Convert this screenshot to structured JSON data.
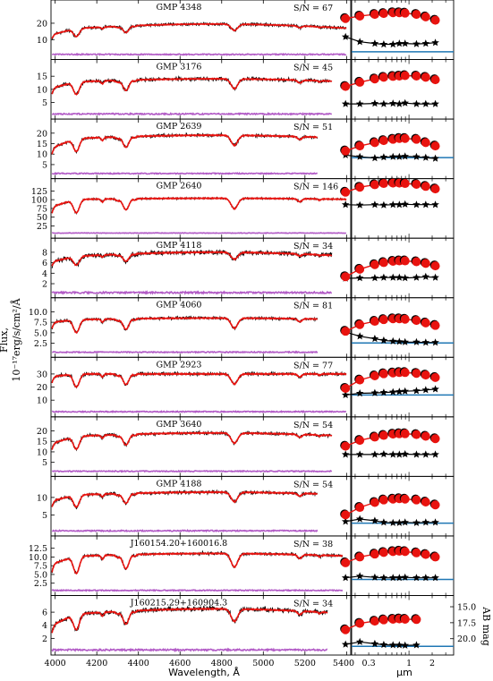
{
  "figure": {
    "ylabel_line1": "Flux,",
    "ylabel_line2": "10⁻¹⁷erg/s/cm²/Å",
    "xlabel_spec": "Wavelength, Å",
    "xlabel_phot": "μm",
    "ylabel_phot": "AB mag"
  },
  "colors": {
    "model": "#e8130f",
    "observed": "#000000",
    "residual": "#b25bc6",
    "continuum": "#1f77b4"
  },
  "chart_data": [
    {
      "type": "line",
      "title": "GMP 4348",
      "sn": "S/N = 67",
      "yticks": [
        "10",
        "20"
      ],
      "ytick_vals": [
        10,
        20
      ],
      "ylim": [
        0,
        32
      ],
      "cont": 16,
      "tilt": 3.5,
      "depth": 0.28,
      "blue": -3,
      "sed": [
        18,
        17.7,
        17.5,
        17.4,
        17.3,
        17.3,
        17.35,
        17.5,
        17.8,
        18.2
      ],
      "cont_mag": 22,
      "star": [
        20.2,
        20.8,
        21.0,
        21.1,
        21.1,
        21.0,
        21.0,
        21.05,
        21.0,
        20.9
      ],
      "noise": 0.8
    },
    {
      "type": "line",
      "title": "GMP 3176",
      "sn": "S/N = 45",
      "yticks": [
        "5",
        "10",
        "15"
      ],
      "ytick_vals": [
        5,
        10,
        15
      ],
      "ylim": [
        0,
        20
      ],
      "cont": 12.5,
      "tilt": 1.5,
      "depth": 0.35,
      "blue": -2,
      "sed": [
        19.0,
        18.5,
        18.1,
        17.9,
        17.8,
        17.75,
        17.7,
        17.75,
        17.9,
        18.2
      ],
      "cont_mag": null,
      "star": [
        21.1,
        21.1,
        21.05,
        21.1,
        21.05,
        21.1,
        21.0,
        21.1,
        21.1,
        21.1
      ],
      "noise": 0.6
    },
    {
      "type": "line",
      "title": "GMP 2639",
      "sn": "S/N = 51",
      "yticks": [
        "5",
        "10",
        "15",
        "20"
      ],
      "ytick_vals": [
        5,
        10,
        15,
        20
      ],
      "ylim": [
        0,
        25
      ],
      "cont": 17,
      "tilt": 2,
      "depth": 0.33,
      "blue": -4,
      "sed": [
        19.6,
        19.0,
        18.6,
        18.35,
        18.2,
        18.1,
        18.1,
        18.2,
        18.6,
        19.0
      ],
      "cont_mag": 20.4,
      "star": [
        20.1,
        20.3,
        20.45,
        20.35,
        20.3,
        20.3,
        20.25,
        20.3,
        20.4,
        20.5
      ],
      "noise": 0.6
    },
    {
      "type": "line",
      "title": "GMP 2640",
      "sn": "S/N = 146",
      "yticks": [
        "25",
        "50",
        "75",
        "100",
        "125"
      ],
      "ytick_vals": [
        25,
        50,
        75,
        100,
        125
      ],
      "ylim": [
        0,
        150
      ],
      "cont": 100,
      "tilt": 4,
      "depth": 0.35,
      "blue": -20,
      "sed": [
        17.4,
        16.8,
        16.5,
        16.35,
        16.3,
        16.3,
        16.35,
        16.45,
        16.7,
        17.0
      ],
      "cont_mag": null,
      "star": [
        18.9,
        18.95,
        18.9,
        18.95,
        18.9,
        18.9,
        18.85,
        18.9,
        18.9,
        18.9
      ],
      "noise": 2
    },
    {
      "type": "line",
      "title": "GMP 4118",
      "sn": "S/N = 34",
      "yticks": [
        "2",
        "4",
        "6",
        "8"
      ],
      "ytick_vals": [
        2,
        4,
        6,
        8
      ],
      "ylim": [
        0,
        10
      ],
      "cont": 7,
      "tilt": 1,
      "depth": 0.22,
      "blue": -0.8,
      "sed": [
        20.4,
        19.5,
        18.95,
        18.7,
        18.55,
        18.5,
        18.5,
        18.6,
        18.8,
        19.1
      ],
      "cont_mag": null,
      "star": [
        20.6,
        20.55,
        20.55,
        20.5,
        20.5,
        20.5,
        20.55,
        20.5,
        20.4,
        20.5
      ],
      "noise": 0.4
    },
    {
      "type": "line",
      "title": "GMP 4060",
      "sn": "S/N = 81",
      "yticks": [
        "2.5",
        "5.0",
        "7.5",
        "10.0"
      ],
      "ytick_vals": [
        2.5,
        5,
        7.5,
        10
      ],
      "ylim": [
        0,
        12.5
      ],
      "cont": 8,
      "tilt": 0.5,
      "depth": 0.35,
      "blue": -0.5,
      "sed": [
        19.8,
        19.0,
        18.6,
        18.4,
        18.3,
        18.3,
        18.35,
        18.5,
        18.8,
        19.1
      ],
      "cont_mag": 21.2,
      "star": [
        19.9,
        20.4,
        20.7,
        20.9,
        21.0,
        21.05,
        21.1,
        21.1,
        21.15,
        21.15
      ],
      "noise": 0.3
    },
    {
      "type": "line",
      "title": "GMP 2923",
      "sn": "S/N = 77",
      "yticks": [
        "10",
        "20",
        "30"
      ],
      "ytick_vals": [
        10,
        20,
        30
      ],
      "ylim": [
        0,
        40
      ],
      "cont": 30,
      "tilt": 0,
      "depth": 0.3,
      "blue": -2,
      "sed": [
        19.5,
        18.5,
        18.0,
        17.75,
        17.65,
        17.6,
        17.6,
        17.7,
        17.9,
        18.2
      ],
      "cont_mag": 20.3,
      "star": [
        20.3,
        20.1,
        20.05,
        20.0,
        19.95,
        19.9,
        19.85,
        19.8,
        19.7,
        19.6
      ],
      "noise": 1
    },
    {
      "type": "line",
      "title": "GMP 3640",
      "sn": "S/N = 54",
      "yticks": [
        "5",
        "10",
        "15",
        "20"
      ],
      "ytick_vals": [
        5,
        10,
        15,
        20
      ],
      "ylim": [
        0,
        25
      ],
      "cont": 17,
      "tilt": 2,
      "depth": 0.33,
      "blue": -3,
      "sed": [
        19.3,
        18.6,
        18.2,
        18.0,
        17.85,
        17.8,
        17.8,
        17.9,
        18.1,
        18.4
      ],
      "cont_mag": null,
      "star": [
        20.3,
        20.3,
        20.3,
        20.25,
        20.3,
        20.3,
        20.25,
        20.3,
        20.3,
        20.3
      ],
      "noise": 0.6
    },
    {
      "type": "line",
      "title": "GMP 4188",
      "sn": "S/N = 54",
      "yticks": [
        "5",
        "10"
      ],
      "ytick_vals": [
        5,
        10
      ],
      "ylim": [
        0,
        15
      ],
      "cont": 10.5,
      "tilt": 1,
      "depth": 0.3,
      "blue": -1.5,
      "sed": [
        20.4,
        19.5,
        18.9,
        18.6,
        18.5,
        18.45,
        18.5,
        18.6,
        18.85,
        19.2
      ],
      "cont_mag": 21.4,
      "star": [
        21.2,
        20.9,
        21.1,
        21.3,
        21.35,
        21.35,
        21.3,
        21.35,
        21.3,
        21.3
      ],
      "noise": 0.4
    },
    {
      "type": "line",
      "title": "J160154.20+160016.8",
      "sn": "S/N = 38",
      "yticks": [
        "2.5",
        "5.0",
        "7.5",
        "10.0",
        "12.5"
      ],
      "ytick_vals": [
        2.5,
        5,
        7.5,
        10,
        12.5
      ],
      "ylim": [
        0,
        15
      ],
      "cont": 10,
      "tilt": 1,
      "depth": 0.45,
      "blue": -2,
      "sed": [
        19.0,
        18.3,
        17.95,
        17.75,
        17.65,
        17.6,
        17.65,
        17.8,
        18.0,
        18.3
      ],
      "cont_mag": 21.0,
      "star": [
        20.8,
        20.6,
        20.75,
        20.8,
        20.8,
        20.8,
        20.75,
        20.8,
        20.8,
        20.8
      ],
      "noise": 0.35
    },
    {
      "type": "line",
      "title": "J160215.29+160904.3",
      "sn": "S/N = 34",
      "yticks": [
        "2",
        "4",
        "6"
      ],
      "ytick_vals": [
        2,
        4,
        6
      ],
      "ylim": [
        0,
        8
      ],
      "cont": 5.5,
      "tilt": 1,
      "depth": 0.4,
      "blue": -1.5,
      "sed": [
        18.6,
        17.6,
        17.25,
        17.05,
        16.95,
        16.9,
        16.95,
        17.0
      ],
      "cont_mag": 21.2,
      "star": [
        20.9,
        20.5,
        20.8,
        20.95,
        21.0,
        21.0,
        21.05,
        21.0
      ],
      "noise": 0.3
    }
  ],
  "axes": {
    "spec_xticks": [
      "4000",
      "4200",
      "4400",
      "4600",
      "4800",
      "5000",
      "5200",
      "5400"
    ],
    "spec_xtick_vals": [
      4000,
      4200,
      4400,
      4600,
      4800,
      5000,
      5200,
      5400
    ],
    "spec_xlim": [
      3980,
      5420
    ],
    "phot_xticks": [
      "0.3",
      "1",
      "2"
    ],
    "phot_xtick_vals": [
      0.3,
      1,
      2
    ],
    "phot_xlim": [
      0.18,
      3.8
    ],
    "phot_yticks": [
      "15.0",
      "17.5",
      "20.0"
    ],
    "phot_ytick_vals": [
      15,
      17.5,
      20
    ],
    "phot_ylim": [
      16.2,
      22.5
    ],
    "phot_last_ylim": [
      13.8,
      22.0
    ]
  },
  "sed_wavelengths_um": [
    0.15,
    0.23,
    0.36,
    0.47,
    0.62,
    0.75,
    0.89,
    1.25,
    1.65,
    2.2
  ]
}
